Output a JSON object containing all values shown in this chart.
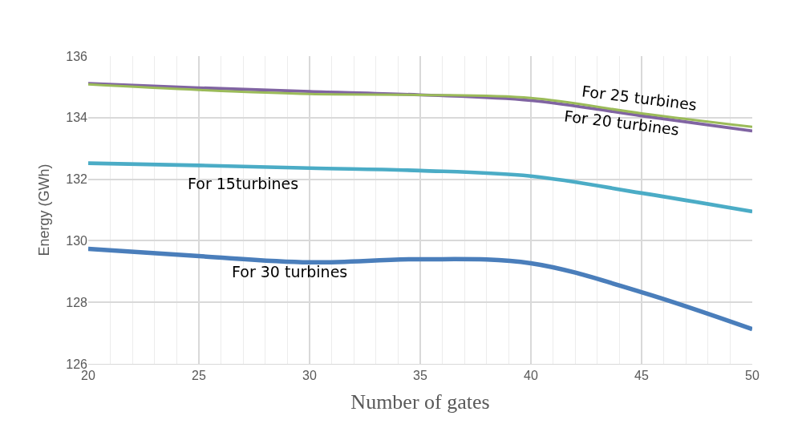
{
  "chart_data": {
    "type": "line",
    "xlabel": "Number of gates",
    "ylabel": "Energy (GWh)",
    "x": [
      20,
      25,
      30,
      35,
      40,
      45,
      50
    ],
    "series": [
      {
        "name": "For 30 turbines",
        "color": "#4a7ebb",
        "values": [
          129.74,
          129.5,
          129.3,
          129.4,
          129.27,
          128.33,
          127.13
        ]
      },
      {
        "name": "For 15turbines",
        "color": "#4bacc6",
        "values": [
          132.52,
          132.45,
          132.36,
          132.28,
          132.1,
          131.55,
          130.95
        ]
      },
      {
        "name": "For 20 turbines",
        "color": "#8064a2",
        "values": [
          135.11,
          134.97,
          134.85,
          134.74,
          134.56,
          134.06,
          133.57
        ]
      },
      {
        "name": "For 25 turbines",
        "color": "#9bbb59",
        "values": [
          135.08,
          134.9,
          134.77,
          134.74,
          134.64,
          134.14,
          133.7
        ]
      }
    ],
    "xlim": [
      20,
      50
    ],
    "xticks": [
      20,
      25,
      30,
      35,
      40,
      45,
      50
    ],
    "ylim": [
      126,
      136
    ],
    "yticks": [
      126,
      128,
      130,
      132,
      134,
      136
    ],
    "grid": true,
    "marker": "none",
    "line_style": "solid"
  }
}
